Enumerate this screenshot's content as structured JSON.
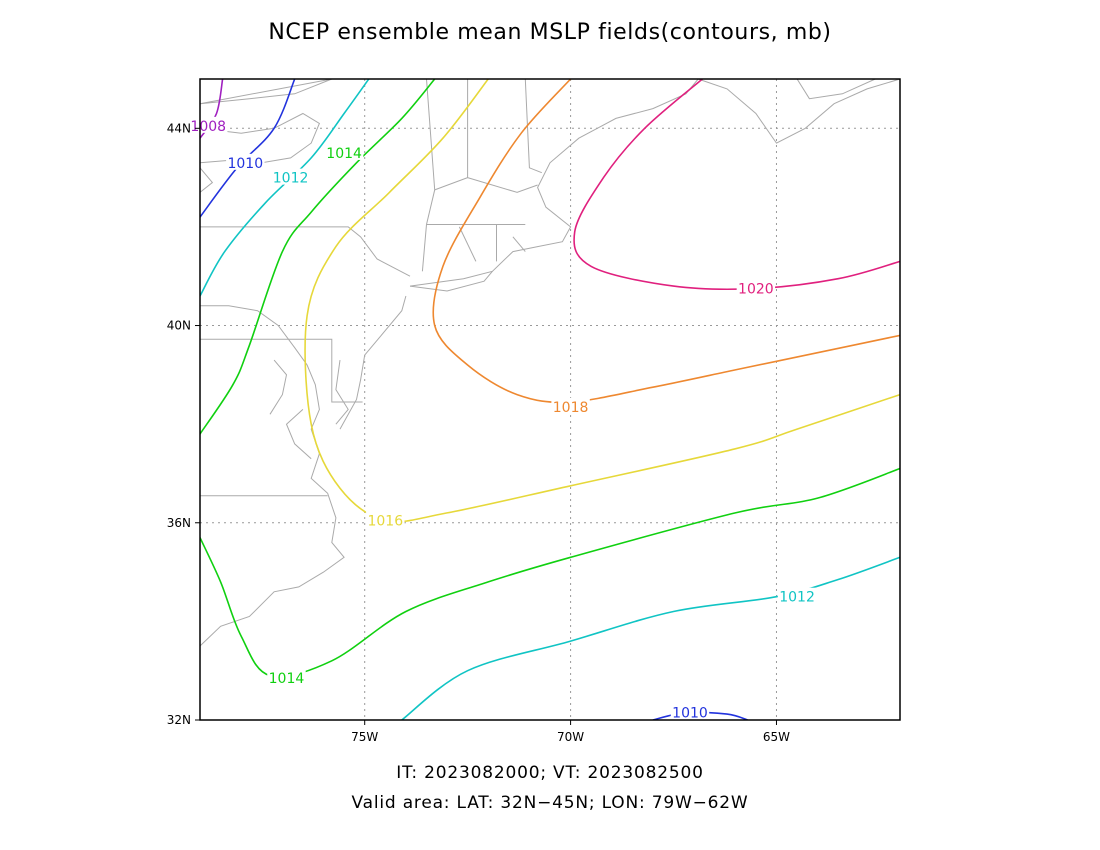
{
  "title": "NCEP ensemble mean MSLP fields(contours, mb)",
  "footer": {
    "times": "IT: 2023082000; VT: 2023082500",
    "area": "Valid area: LAT: 32N−45N; LON: 79W−62W"
  },
  "map": {
    "lat_range": [
      32,
      45
    ],
    "lon_range": [
      -79,
      -62
    ],
    "lat_ticks": [
      {
        "value": 32,
        "label": "32N"
      },
      {
        "value": 36,
        "label": "36N"
      },
      {
        "value": 40,
        "label": "40N"
      },
      {
        "value": 44,
        "label": "44N"
      }
    ],
    "lon_ticks": [
      {
        "value": -75,
        "label": "75W"
      },
      {
        "value": -70,
        "label": "70W"
      },
      {
        "value": -65,
        "label": "65W"
      }
    ],
    "grid": true,
    "coastline_color": "#aaaaaa"
  },
  "contours": [
    {
      "level": 1008,
      "color": "#a020c0",
      "label": "1008",
      "points": [
        [
          -78.45,
          45
        ],
        [
          -78.6,
          44.3
        ],
        [
          -79,
          43.8
        ]
      ],
      "labels": [
        [
          -78.8,
          44.05
        ]
      ]
    },
    {
      "level": 1010,
      "color": "#2233dd",
      "label": "1010",
      "points": [
        [
          -76.7,
          45
        ],
        [
          -77.2,
          44
        ],
        [
          -78.1,
          43.2
        ],
        [
          -79,
          42.2
        ]
      ],
      "labels": [
        [
          -77.9,
          43.3
        ]
      ]
    },
    {
      "level": 1012,
      "color": "#10c4c4",
      "label": "1012",
      "points": [
        [
          -74.9,
          45
        ],
        [
          -75.5,
          44.3
        ],
        [
          -76.3,
          43.4
        ],
        [
          -77.4,
          42.5
        ],
        [
          -78.4,
          41.5
        ],
        [
          -79,
          40.6
        ]
      ],
      "labels": [
        [
          -76.8,
          43.0
        ]
      ]
    },
    {
      "level": 1014,
      "color": "#10d010",
      "label": "1014",
      "points": [
        [
          -73.3,
          45
        ],
        [
          -74.1,
          44.2
        ],
        [
          -75.2,
          43.3
        ],
        [
          -76.3,
          42.3
        ],
        [
          -77.0,
          41.5
        ],
        [
          -77.8,
          39.6
        ],
        [
          -78.2,
          38.8
        ],
        [
          -79,
          37.8
        ]
      ],
      "labels": [
        [
          -75.5,
          43.5
        ]
      ]
    },
    {
      "level": 1016,
      "color": "#e6d83a",
      "label": "1016",
      "points": [
        [
          -72.0,
          45
        ],
        [
          -73.1,
          43.8
        ],
        [
          -74.4,
          42.7
        ],
        [
          -75.7,
          41.6
        ],
        [
          -76.4,
          40.2
        ],
        [
          -76.3,
          38.0
        ],
        [
          -75.6,
          36.7
        ],
        [
          -74.5,
          36.05
        ],
        [
          -73.0,
          36.2
        ],
        [
          -70.0,
          36.75
        ],
        [
          -66.0,
          37.5
        ],
        [
          -64.5,
          37.9
        ],
        [
          -62,
          38.6
        ]
      ],
      "labels": [
        [
          -74.5,
          36.05
        ]
      ]
    },
    {
      "level": 1014,
      "color": "#10d010",
      "label": "1014",
      "points": [
        [
          -79,
          35.7
        ],
        [
          -78.5,
          34.8
        ],
        [
          -78.0,
          33.7
        ],
        [
          -77.3,
          32.9
        ],
        [
          -75.8,
          33.2
        ],
        [
          -74.0,
          34.2
        ],
        [
          -72.0,
          34.8
        ],
        [
          -70.0,
          35.3
        ],
        [
          -66.0,
          36.2
        ],
        [
          -64.0,
          36.5
        ],
        [
          -62,
          37.1
        ]
      ],
      "labels": [
        [
          -76.9,
          32.85
        ]
      ]
    },
    {
      "level": 1012,
      "color": "#10c4c4",
      "label": "1012",
      "points": [
        [
          -74.1,
          32
        ],
        [
          -72.5,
          33.0
        ],
        [
          -70.0,
          33.6
        ],
        [
          -67.5,
          34.2
        ],
        [
          -65.0,
          34.5
        ],
        [
          -63.5,
          34.85
        ],
        [
          -62,
          35.3
        ]
      ],
      "labels": [
        [
          -64.5,
          34.5
        ]
      ]
    },
    {
      "level": 1010,
      "color": "#2233dd",
      "label": "1010",
      "points": [
        [
          -68.0,
          32
        ],
        [
          -67.2,
          32.15
        ],
        [
          -66.2,
          32.12
        ],
        [
          -65.7,
          32
        ]
      ],
      "labels": [
        [
          -67.1,
          32.15
        ]
      ]
    },
    {
      "level": 1018,
      "color": "#ee8830",
      "label": "1018",
      "points": [
        [
          -70.0,
          45
        ],
        [
          -71.2,
          43.9
        ],
        [
          -72.2,
          42.6
        ],
        [
          -73.1,
          41.2
        ],
        [
          -73.3,
          40.0
        ],
        [
          -72.5,
          39.2
        ],
        [
          -71.3,
          38.6
        ],
        [
          -70.0,
          38.45
        ],
        [
          -68.0,
          38.75
        ],
        [
          -66.0,
          39.1
        ],
        [
          -64.0,
          39.45
        ],
        [
          -62,
          39.8
        ]
      ],
      "labels": [
        [
          -70.0,
          38.35
        ]
      ]
    },
    {
      "level": 1020,
      "color": "#e0207e",
      "label": "1020",
      "points": [
        [
          -66.8,
          45
        ],
        [
          -68.2,
          44.0
        ],
        [
          -69.2,
          43.0
        ],
        [
          -69.9,
          41.9
        ],
        [
          -69.5,
          41.2
        ],
        [
          -67.5,
          40.8
        ],
        [
          -65.5,
          40.75
        ],
        [
          -63.5,
          40.95
        ],
        [
          -62,
          41.3
        ]
      ],
      "labels": [
        [
          -65.5,
          40.75
        ]
      ]
    }
  ]
}
